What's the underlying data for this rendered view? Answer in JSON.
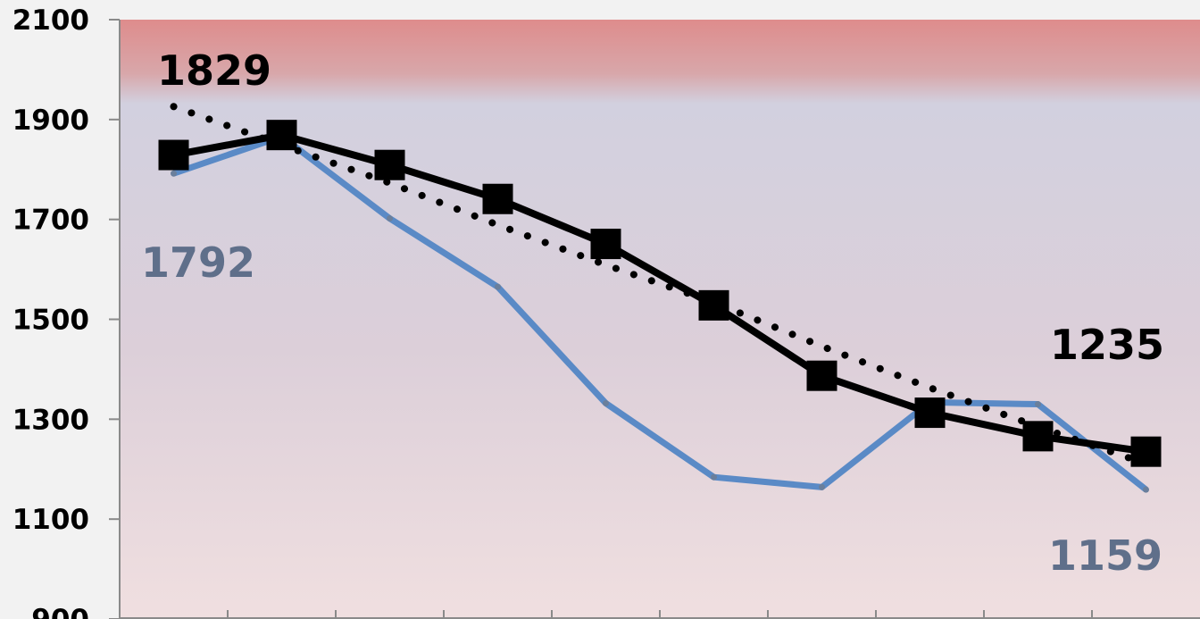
{
  "chart_data": {
    "type": "line",
    "ylim": [
      900,
      2100
    ],
    "yticks": [
      2100,
      1900,
      1700,
      1500,
      1300,
      1100,
      900
    ],
    "x": [
      1,
      2,
      3,
      4,
      5,
      6,
      7,
      8,
      9,
      10
    ],
    "grid": false,
    "series": [
      {
        "style": "solid-black-square-markers",
        "color": "#000000",
        "values": [
          1829,
          1869,
          1809,
          1741,
          1651,
          1528,
          1387,
          1313,
          1266,
          1235
        ]
      },
      {
        "style": "solid-blue",
        "color": "#5a8ac6",
        "values": [
          1792,
          1866,
          1702,
          1565,
          1332,
          1184,
          1164,
          1334,
          1330,
          1159
        ]
      },
      {
        "style": "dotted-black-trend",
        "color": "#000000",
        "values": [
          1926,
          1849,
          1773,
          1689,
          1609,
          1534,
          1446,
          1363,
          1285,
          1211
        ]
      }
    ],
    "annotations": [
      {
        "text": "1829",
        "color": "#000000"
      },
      {
        "text": "1792",
        "color": "#5f6f8a"
      },
      {
        "text": "1235",
        "color": "#000000"
      },
      {
        "text": "1159",
        "color": "#5f6f8a"
      }
    ]
  },
  "colors": {
    "background": "#f2f2f2",
    "plot_top": "#de8c8c",
    "plot_band": "#d2d0df",
    "plot_bottom": "#f0dfe0"
  }
}
